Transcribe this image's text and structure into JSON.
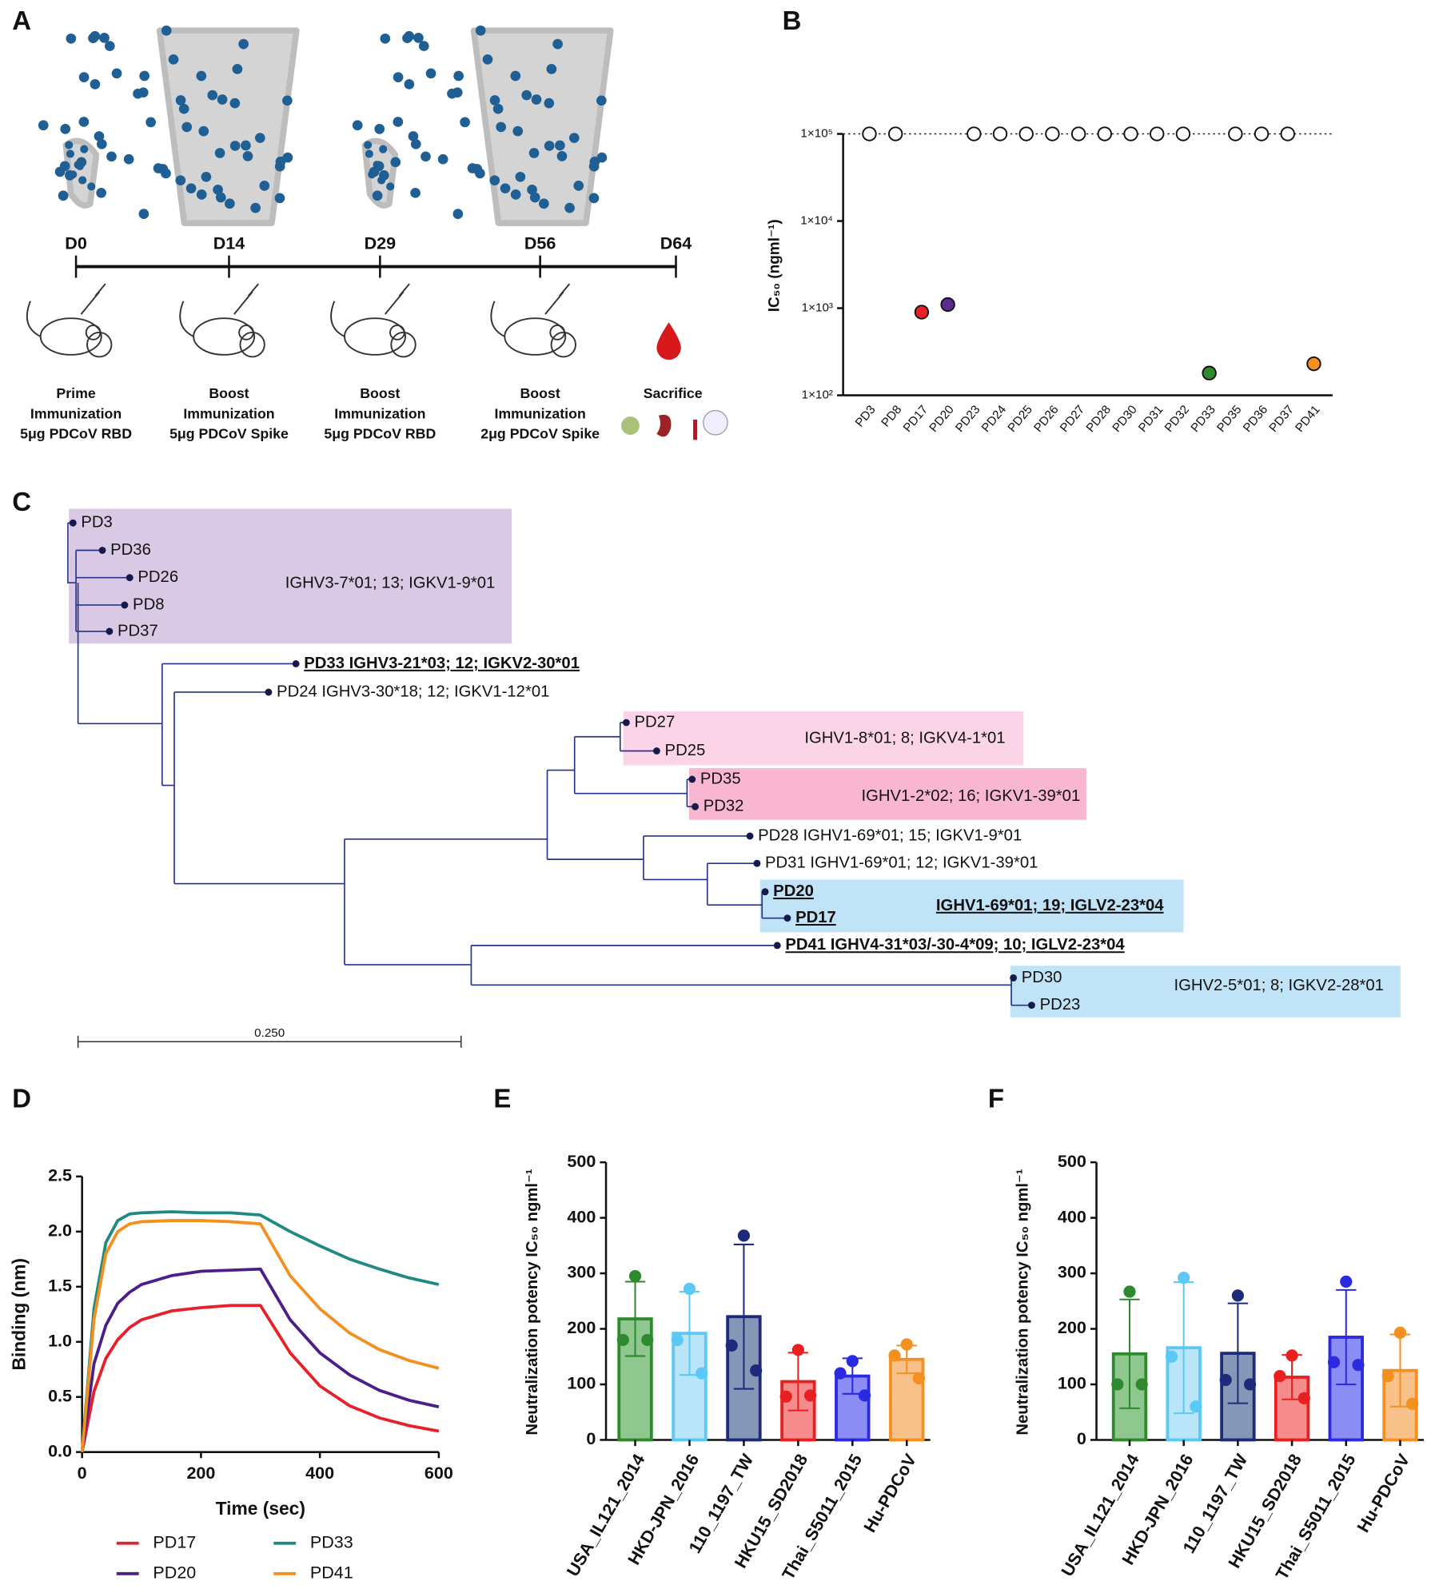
{
  "panel_labels": [
    "A",
    "B",
    "C",
    "D",
    "E",
    "F"
  ],
  "timeline": {
    "events": [
      {
        "day": "D0",
        "color": "#29abe2",
        "caption": [
          "Prime",
          "Immunization",
          "5μg PDCoV RBD"
        ]
      },
      {
        "day": "D14",
        "color": "#f5b400",
        "caption": [
          "Boost",
          "Immunization",
          "5μg PDCoV Spike"
        ]
      },
      {
        "day": "D29",
        "color": "#29abe2",
        "caption": [
          "Boost",
          "Immunization",
          "5μg PDCoV RBD"
        ]
      },
      {
        "day": "D56",
        "color": "#f5b400",
        "caption": [
          "Boost",
          "Immunization",
          "2μg PDCoV Spike"
        ]
      },
      {
        "day": "D64",
        "color": "#e0201b",
        "caption": [
          "Sacrifice"
        ]
      }
    ]
  },
  "tree": {
    "branch_color": "#27338a",
    "leaves": [
      {
        "label": "PD3"
      },
      {
        "label": "PD36"
      },
      {
        "label": "PD26"
      },
      {
        "label": "PD8"
      },
      {
        "label": "PD37"
      },
      {
        "label": "PD33 IGHV3-21*03; 12; IGKV2-30*01",
        "emphasis": true
      },
      {
        "label": "PD24 IGHV3-30*18; 12; IGKV1-12*01"
      },
      {
        "label": "PD27"
      },
      {
        "label": "PD25"
      },
      {
        "label": "PD35"
      },
      {
        "label": "PD32"
      },
      {
        "label": "PD28 IGHV1-69*01; 15; IGKV1-9*01"
      },
      {
        "label": "PD31 IGHV1-69*01; 12;  IGKV1-39*01"
      },
      {
        "label": "PD20",
        "emphasis": true
      },
      {
        "label": "PD17",
        "emphasis": true
      },
      {
        "label": "PD41 IGHV4-31*03/-30-4*09; 10; IGLV2-23*04",
        "emphasis": true
      },
      {
        "label": "PD30"
      },
      {
        "label": "PD23"
      }
    ],
    "clades": [
      {
        "label": "IGHV3-7*01; 13; IGKV1-9*01",
        "color": "#d9c9e4"
      },
      {
        "label": "IGHV1-8*01; 8; IGKV4-1*01",
        "color": "#fbd5e7"
      },
      {
        "label": "IGHV1-2*02; 16; IGKV1-39*01",
        "color": "#f8b6d1"
      },
      {
        "label": "IGHV1-69*01; 19; IGLV2-23*04",
        "color": "#c0e3f8",
        "emphasis": true
      },
      {
        "label": "IGHV2-5*01; 8; IGKV2-28*01",
        "color": "#c0e3f8"
      }
    ],
    "scale_label": "0.250"
  },
  "chart_data": [
    {
      "type": "dot",
      "y_label": "IC₅₀ (ngml⁻¹)",
      "log_y": true,
      "categories": [
        "PD3",
        "PD8",
        "PD17",
        "PD20",
        "PD23",
        "PD24",
        "PD25",
        "PD26",
        "PD27",
        "PD28",
        "PD30",
        "PD31",
        "PD32",
        "PD33",
        "PD35",
        "PD36",
        "PD37",
        "PD41"
      ],
      "values": [
        100000,
        100000,
        900,
        1100,
        100000,
        100000,
        100000,
        100000,
        100000,
        100000,
        100000,
        100000,
        100000,
        180,
        100000,
        100000,
        100000,
        230
      ],
      "colors": [
        "#ffffff",
        "#ffffff",
        "#e8202a",
        "#5a2a8f",
        "#ffffff",
        "#ffffff",
        "#ffffff",
        "#ffffff",
        "#ffffff",
        "#ffffff",
        "#ffffff",
        "#ffffff",
        "#ffffff",
        "#2f8a2f",
        "#ffffff",
        "#ffffff",
        "#ffffff",
        "#f39020"
      ],
      "reference_line": 100000,
      "ylim": [
        100,
        100000
      ],
      "yticks": [
        {
          "value": 100,
          "label": "1×10²"
        },
        {
          "value": 1000,
          "label": "1×10³"
        },
        {
          "value": 10000,
          "label": "1×10⁴"
        },
        {
          "value": 100000,
          "label": "1×10⁵"
        }
      ]
    },
    {
      "type": "line",
      "x_label": "Time (sec)",
      "y_label": "Binding (nm)",
      "legend": "bottom",
      "x": [
        0,
        20,
        40,
        60,
        80,
        100,
        150,
        200,
        250,
        300,
        350,
        400,
        450,
        500,
        550,
        600
      ],
      "series": [
        {
          "name": "PD17",
          "color": "#e8202a",
          "values": [
            0,
            0.55,
            0.85,
            1.02,
            1.13,
            1.2,
            1.28,
            1.31,
            1.33,
            1.33,
            0.9,
            0.6,
            0.42,
            0.31,
            0.24,
            0.19
          ]
        },
        {
          "name": "PD33",
          "color": "#1f8a84",
          "values": [
            0,
            1.3,
            1.9,
            2.1,
            2.16,
            2.17,
            2.18,
            2.17,
            2.17,
            2.15,
            2.0,
            1.87,
            1.75,
            1.66,
            1.58,
            1.52
          ]
        },
        {
          "name": "PD20",
          "color": "#4b1f8a",
          "values": [
            0,
            0.8,
            1.15,
            1.35,
            1.45,
            1.52,
            1.6,
            1.64,
            1.65,
            1.66,
            1.2,
            0.9,
            0.7,
            0.56,
            0.47,
            0.41
          ]
        },
        {
          "name": "PD41",
          "color": "#f3901f",
          "values": [
            0,
            1.2,
            1.8,
            2.0,
            2.07,
            2.09,
            2.1,
            2.1,
            2.09,
            2.07,
            1.6,
            1.3,
            1.08,
            0.93,
            0.83,
            0.76
          ]
        }
      ],
      "xlim": [
        0,
        600
      ],
      "xticks": [
        0,
        200,
        400,
        600
      ],
      "ylim": [
        0,
        2.5
      ],
      "yticks": [
        {
          "value": 0,
          "label": "0.0"
        },
        0.5,
        {
          "value": 1,
          "label": "1.0"
        },
        1.5,
        {
          "value": 2,
          "label": "2.0"
        },
        2.5
      ]
    },
    {
      "type": "bar",
      "y_label": "Neutralization potency IC₅₀ ngml⁻¹",
      "categories": [
        "USA_IL121_2014",
        "HKD-JPN_2016",
        "110_1197_TW",
        "HKU15_SD2018",
        "Thai_S5011_2015",
        "Hu-PDCoV"
      ],
      "values": [
        218,
        192,
        222,
        105,
        115,
        145
      ],
      "errors": [
        67,
        75,
        130,
        52,
        32,
        25
      ],
      "points": [
        [
          295,
          180,
          180
        ],
        [
          272,
          180,
          120
        ],
        [
          368,
          170,
          125
        ],
        [
          162,
          78,
          80
        ],
        [
          142,
          120,
          80
        ],
        [
          172,
          152,
          111
        ]
      ],
      "colors": [
        "#2f8a2f",
        "#5bc8f5",
        "#1f2a7a",
        "#e82020",
        "#2a2ae0",
        "#f39020"
      ],
      "fill_colors": [
        "#8fc88f",
        "#b9e5f9",
        "#8497b7",
        "#f58b8b",
        "#8c8cf5",
        "#f8c189"
      ],
      "ylim": [
        0,
        500
      ],
      "yticks": [
        0,
        100,
        200,
        300,
        400,
        500
      ]
    },
    {
      "type": "bar",
      "y_label": "Neutralization potency IC₅₀ ngml⁻¹",
      "categories": [
        "USA_IL121_2014",
        "HKD-JPN_2016",
        "110_1197_TW",
        "HKU15_SD2018",
        "Thai_S5011_2015",
        "Hu-PDCoV"
      ],
      "values": [
        155,
        166,
        156,
        113,
        185,
        125
      ],
      "errors": [
        98,
        118,
        90,
        40,
        85,
        65
      ],
      "points": [
        [
          267,
          100,
          100
        ],
        [
          292,
          150,
          60
        ],
        [
          260,
          108,
          100
        ],
        [
          152,
          115,
          75
        ],
        [
          285,
          140,
          135
        ],
        [
          193,
          115,
          65
        ]
      ],
      "colors": [
        "#2f8a2f",
        "#5bc8f5",
        "#1f2a7a",
        "#e82020",
        "#2a2ae0",
        "#f39020"
      ],
      "fill_colors": [
        "#8fc88f",
        "#b9e5f9",
        "#8497b7",
        "#f58b8b",
        "#8c8cf5",
        "#f8c189"
      ],
      "ylim": [
        0,
        500
      ],
      "yticks": [
        0,
        100,
        200,
        300,
        400,
        500
      ]
    }
  ]
}
